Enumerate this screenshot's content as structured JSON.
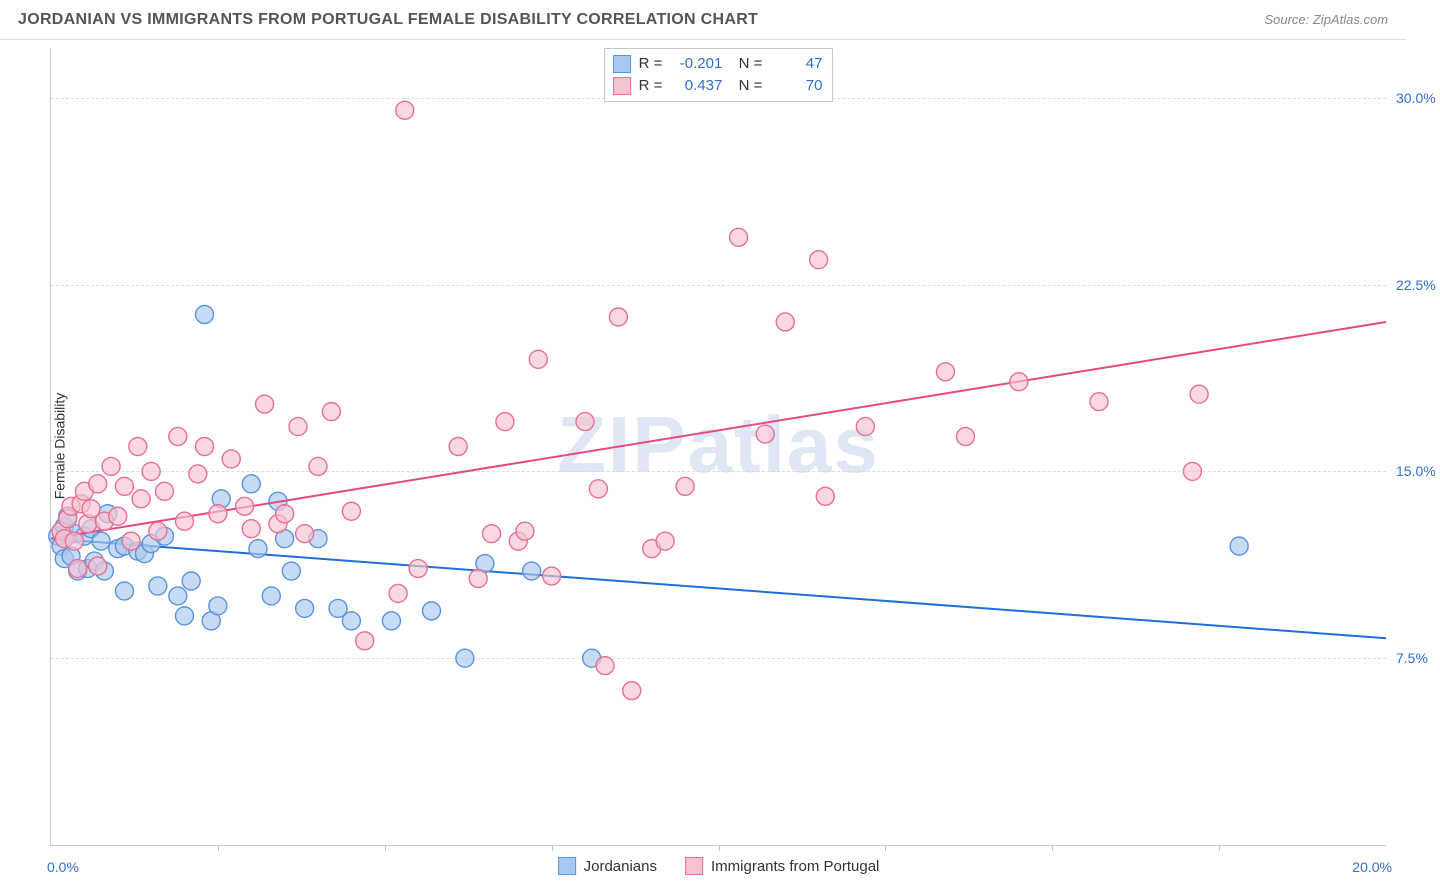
{
  "title": "JORDANIAN VS IMMIGRANTS FROM PORTUGAL FEMALE DISABILITY CORRELATION CHART",
  "source": "Source: ZipAtlas.com",
  "ylabel": "Female Disability",
  "watermark": "ZIPatlas",
  "chart": {
    "type": "scatter",
    "xlim": [
      0,
      20
    ],
    "ylim": [
      0,
      32
    ],
    "xaxis_left_label": "0.0%",
    "xaxis_right_label": "20.0%",
    "xticks": [
      2.5,
      5.0,
      7.5,
      10.0,
      12.5,
      15.0,
      17.5
    ],
    "yticks": [
      {
        "v": 7.5,
        "label": "7.5%"
      },
      {
        "v": 15.0,
        "label": "15.0%"
      },
      {
        "v": 22.5,
        "label": "22.5%"
      },
      {
        "v": 30.0,
        "label": "30.0%"
      }
    ],
    "axis_label_color": "#2f6fd0",
    "grid_color": "#dcdcdc",
    "background_color": "#ffffff",
    "marker_radius": 9,
    "marker_stroke_width": 1.4,
    "trendline_width": 2,
    "series": [
      {
        "key": "jordanian",
        "label": "Jordanians",
        "fill": "#a9c8ef",
        "stroke": "#5a94db",
        "line_color": "#1f6fd8",
        "r": -0.201,
        "n": 47,
        "trend_start": {
          "x": 0,
          "y": 12.3
        },
        "trend_end": {
          "x": 20,
          "y": 8.3
        },
        "points": [
          {
            "x": 0.1,
            "y": 12.4
          },
          {
            "x": 0.15,
            "y": 12.0
          },
          {
            "x": 0.2,
            "y": 11.5
          },
          {
            "x": 0.2,
            "y": 12.8
          },
          {
            "x": 0.25,
            "y": 13.2
          },
          {
            "x": 0.3,
            "y": 11.6
          },
          {
            "x": 0.35,
            "y": 12.5
          },
          {
            "x": 0.4,
            "y": 11.0
          },
          {
            "x": 0.5,
            "y": 12.4
          },
          {
            "x": 0.55,
            "y": 11.1
          },
          {
            "x": 0.6,
            "y": 12.7
          },
          {
            "x": 0.65,
            "y": 11.4
          },
          {
            "x": 0.75,
            "y": 12.2
          },
          {
            "x": 0.8,
            "y": 11.0
          },
          {
            "x": 0.85,
            "y": 13.3
          },
          {
            "x": 1.0,
            "y": 11.9
          },
          {
            "x": 1.1,
            "y": 12.0
          },
          {
            "x": 1.1,
            "y": 10.2
          },
          {
            "x": 1.3,
            "y": 11.8
          },
          {
            "x": 1.4,
            "y": 11.7
          },
          {
            "x": 1.5,
            "y": 12.1
          },
          {
            "x": 1.6,
            "y": 10.4
          },
          {
            "x": 1.7,
            "y": 12.4
          },
          {
            "x": 1.9,
            "y": 10.0
          },
          {
            "x": 2.0,
            "y": 9.2
          },
          {
            "x": 2.1,
            "y": 10.6
          },
          {
            "x": 2.3,
            "y": 21.3
          },
          {
            "x": 2.4,
            "y": 9.0
          },
          {
            "x": 2.5,
            "y": 9.6
          },
          {
            "x": 2.55,
            "y": 13.9
          },
          {
            "x": 3.0,
            "y": 14.5
          },
          {
            "x": 3.1,
            "y": 11.9
          },
          {
            "x": 3.3,
            "y": 10.0
          },
          {
            "x": 3.4,
            "y": 13.8
          },
          {
            "x": 3.5,
            "y": 12.3
          },
          {
            "x": 3.6,
            "y": 11.0
          },
          {
            "x": 3.8,
            "y": 9.5
          },
          {
            "x": 4.0,
            "y": 12.3
          },
          {
            "x": 4.3,
            "y": 9.5
          },
          {
            "x": 4.5,
            "y": 9.0
          },
          {
            "x": 5.1,
            "y": 9.0
          },
          {
            "x": 5.7,
            "y": 9.4
          },
          {
            "x": 6.2,
            "y": 7.5
          },
          {
            "x": 6.5,
            "y": 11.3
          },
          {
            "x": 7.2,
            "y": 11.0
          },
          {
            "x": 8.1,
            "y": 7.5
          },
          {
            "x": 17.8,
            "y": 12.0
          }
        ]
      },
      {
        "key": "portugal",
        "label": "Immigrants from Portugal",
        "fill": "#f6c3d1",
        "stroke": "#e86f95",
        "line_color": "#e64a82",
        "r": 0.437,
        "n": 70,
        "trend_start": {
          "x": 0,
          "y": 12.3
        },
        "trend_end": {
          "x": 20,
          "y": 21.0
        },
        "points": [
          {
            "x": 0.15,
            "y": 12.6
          },
          {
            "x": 0.2,
            "y": 12.3
          },
          {
            "x": 0.25,
            "y": 13.1
          },
          {
            "x": 0.3,
            "y": 13.6
          },
          {
            "x": 0.35,
            "y": 12.2
          },
          {
            "x": 0.4,
            "y": 11.1
          },
          {
            "x": 0.45,
            "y": 13.7
          },
          {
            "x": 0.5,
            "y": 14.2
          },
          {
            "x": 0.55,
            "y": 12.9
          },
          {
            "x": 0.6,
            "y": 13.5
          },
          {
            "x": 0.7,
            "y": 14.5
          },
          {
            "x": 0.7,
            "y": 11.2
          },
          {
            "x": 0.8,
            "y": 13.0
          },
          {
            "x": 0.9,
            "y": 15.2
          },
          {
            "x": 1.0,
            "y": 13.2
          },
          {
            "x": 1.1,
            "y": 14.4
          },
          {
            "x": 1.2,
            "y": 12.2
          },
          {
            "x": 1.3,
            "y": 16.0
          },
          {
            "x": 1.35,
            "y": 13.9
          },
          {
            "x": 1.5,
            "y": 15.0
          },
          {
            "x": 1.6,
            "y": 12.6
          },
          {
            "x": 1.7,
            "y": 14.2
          },
          {
            "x": 1.9,
            "y": 16.4
          },
          {
            "x": 2.0,
            "y": 13.0
          },
          {
            "x": 2.2,
            "y": 14.9
          },
          {
            "x": 2.3,
            "y": 16.0
          },
          {
            "x": 2.5,
            "y": 13.3
          },
          {
            "x": 2.7,
            "y": 15.5
          },
          {
            "x": 2.9,
            "y": 13.6
          },
          {
            "x": 3.0,
            "y": 12.7
          },
          {
            "x": 3.2,
            "y": 17.7
          },
          {
            "x": 3.4,
            "y": 12.9
          },
          {
            "x": 3.5,
            "y": 13.3
          },
          {
            "x": 3.7,
            "y": 16.8
          },
          {
            "x": 3.8,
            "y": 12.5
          },
          {
            "x": 4.0,
            "y": 15.2
          },
          {
            "x": 4.2,
            "y": 17.4
          },
          {
            "x": 4.5,
            "y": 13.4
          },
          {
            "x": 4.7,
            "y": 8.2
          },
          {
            "x": 5.2,
            "y": 10.1
          },
          {
            "x": 5.3,
            "y": 29.5
          },
          {
            "x": 5.5,
            "y": 11.1
          },
          {
            "x": 6.1,
            "y": 16.0
          },
          {
            "x": 6.4,
            "y": 10.7
          },
          {
            "x": 6.6,
            "y": 12.5
          },
          {
            "x": 6.8,
            "y": 17.0
          },
          {
            "x": 7.0,
            "y": 12.2
          },
          {
            "x": 7.1,
            "y": 12.6
          },
          {
            "x": 7.3,
            "y": 19.5
          },
          {
            "x": 7.5,
            "y": 10.8
          },
          {
            "x": 8.0,
            "y": 17.0
          },
          {
            "x": 8.2,
            "y": 14.3
          },
          {
            "x": 8.3,
            "y": 7.2
          },
          {
            "x": 8.5,
            "y": 21.2
          },
          {
            "x": 8.7,
            "y": 6.2
          },
          {
            "x": 9.0,
            "y": 11.9
          },
          {
            "x": 9.2,
            "y": 12.2
          },
          {
            "x": 9.5,
            "y": 14.4
          },
          {
            "x": 10.3,
            "y": 24.4
          },
          {
            "x": 10.7,
            "y": 16.5
          },
          {
            "x": 11.0,
            "y": 21.0
          },
          {
            "x": 11.5,
            "y": 23.5
          },
          {
            "x": 11.6,
            "y": 14.0
          },
          {
            "x": 12.2,
            "y": 16.8
          },
          {
            "x": 13.4,
            "y": 19.0
          },
          {
            "x": 13.7,
            "y": 16.4
          },
          {
            "x": 14.5,
            "y": 18.6
          },
          {
            "x": 15.7,
            "y": 17.8
          },
          {
            "x": 17.1,
            "y": 15.0
          },
          {
            "x": 17.2,
            "y": 18.1
          }
        ]
      }
    ]
  }
}
